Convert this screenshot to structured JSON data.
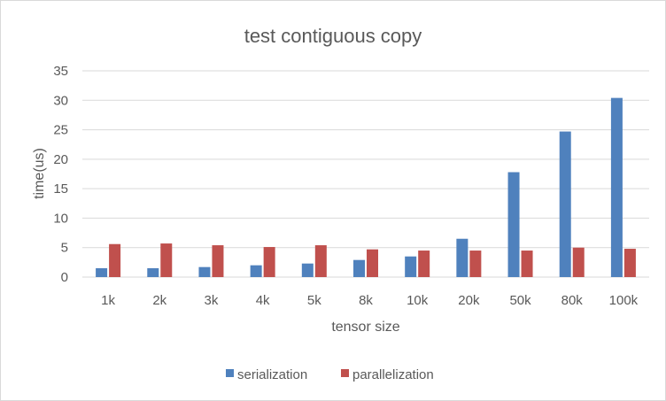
{
  "chart_data": {
    "type": "bar",
    "title": "test contiguous copy",
    "xlabel": "tensor size",
    "ylabel": "time(us)",
    "ylim": [
      0,
      35
    ],
    "yticks": [
      0,
      5,
      10,
      15,
      20,
      25,
      30,
      35
    ],
    "categories": [
      "1k",
      "2k",
      "3k",
      "4k",
      "5k",
      "8k",
      "10k",
      "20k",
      "50k",
      "80k",
      "100k"
    ],
    "series": [
      {
        "name": "serialization",
        "color": "#4f81bd",
        "values": [
          1.5,
          1.5,
          1.7,
          2.0,
          2.3,
          2.9,
          3.5,
          6.5,
          17.8,
          24.7,
          30.4
        ]
      },
      {
        "name": "parallelization",
        "color": "#c0504d",
        "values": [
          5.6,
          5.7,
          5.4,
          5.1,
          5.4,
          4.7,
          4.5,
          4.5,
          4.5,
          5.0,
          4.8
        ]
      }
    ],
    "grid": true,
    "legend_position": "bottom"
  }
}
